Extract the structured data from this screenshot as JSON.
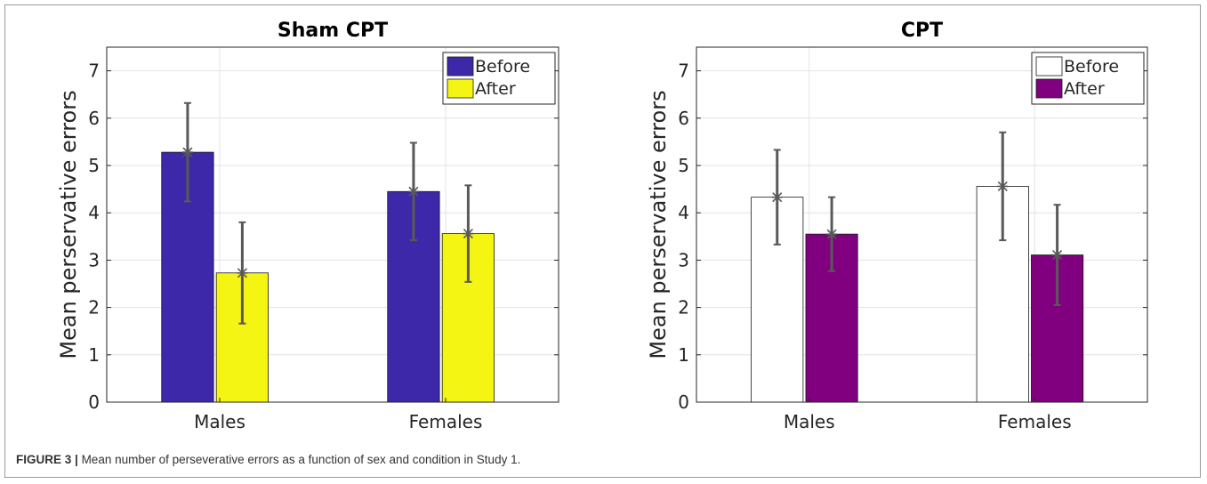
{
  "caption": {
    "label": "FIGURE 3 |",
    "text": "Mean number of perseverative errors as a function of sex and condition in Study 1."
  },
  "colors": {
    "sham_before": "#3c28a8",
    "sham_after": "#f5f514",
    "cpt_before": "#ffffff",
    "cpt_after": "#800080",
    "errorbar": "#595959",
    "grid": "#e3e3e3",
    "axis": "#262626"
  },
  "chart_data": [
    {
      "type": "bar",
      "title": "Sham CPT",
      "xlabel": "",
      "ylabel": "Mean perservative errors",
      "categories": [
        "Males",
        "Females"
      ],
      "ylim": [
        0,
        7.5
      ],
      "yticks": [
        "0",
        "1",
        "2",
        "3",
        "4",
        "5",
        "6",
        "7"
      ],
      "grid": true,
      "legend_position": "top-right",
      "series": [
        {
          "name": "Before",
          "values": [
            5.28,
            4.45
          ],
          "error": [
            1.04,
            1.03
          ],
          "color": "#3c28a8"
        },
        {
          "name": "After",
          "values": [
            2.73,
            3.56
          ],
          "error": [
            1.07,
            1.02
          ],
          "color": "#f5f514"
        }
      ]
    },
    {
      "type": "bar",
      "title": "CPT",
      "xlabel": "",
      "ylabel": "Mean perservative errors",
      "categories": [
        "Males",
        "Females"
      ],
      "ylim": [
        0,
        7.5
      ],
      "yticks": [
        "0",
        "1",
        "2",
        "3",
        "4",
        "5",
        "6",
        "7"
      ],
      "grid": true,
      "legend_position": "top-right",
      "series": [
        {
          "name": "Before",
          "values": [
            4.33,
            4.56
          ],
          "error": [
            1.0,
            1.14
          ],
          "color": "#ffffff"
        },
        {
          "name": "After",
          "values": [
            3.55,
            3.11
          ],
          "error": [
            0.78,
            1.06
          ],
          "color": "#800080"
        }
      ]
    }
  ]
}
